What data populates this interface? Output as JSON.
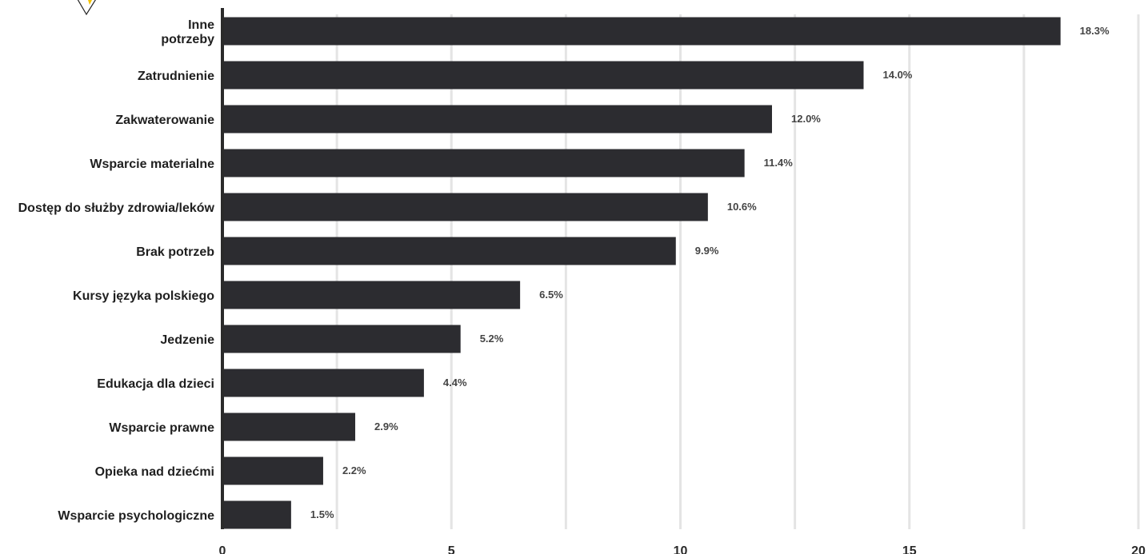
{
  "chart_data": {
    "type": "bar",
    "orientation": "horizontal",
    "categories": [
      "Inne potrzeby",
      "Zatrudnienie",
      "Zakwaterowanie",
      "Wsparcie materialne",
      "Dostęp do służby zdrowia/leków",
      "Brak potrzeb",
      "Kursy języka polskiego",
      "Jedzenie",
      "Edukacja dla dzieci",
      "Wsparcie prawne",
      "Opieka nad dziećmi",
      "Wsparcie psychologiczne"
    ],
    "category_lines": [
      [
        "Inne",
        "potrzeby"
      ],
      [
        "Zatrudnienie"
      ],
      [
        "Zakwaterowanie"
      ],
      [
        "Wsparcie materialne"
      ],
      [
        "Dostęp do służby zdrowia/leków"
      ],
      [
        "Brak potrzeb"
      ],
      [
        "Kursy języka polskiego"
      ],
      [
        "Jedzenie"
      ],
      [
        "Edukacja dla dzieci"
      ],
      [
        "Wsparcie prawne"
      ],
      [
        "Opieka nad dziećmi"
      ],
      [
        "Wsparcie psychologiczne"
      ]
    ],
    "values": [
      18.3,
      14.0,
      12.0,
      11.4,
      10.6,
      9.9,
      6.5,
      5.2,
      4.4,
      2.9,
      2.2,
      1.5
    ],
    "value_labels": [
      "18.3%",
      "14.0%",
      "12.0%",
      "11.4%",
      "10.6%",
      "9.9%",
      "6.5%",
      "5.2%",
      "4.4%",
      "2.9%",
      "2.2%",
      "1.5%"
    ],
    "xlim": [
      0,
      20
    ],
    "xticks": [
      0,
      5,
      10,
      15,
      20
    ],
    "xtick_labels": [
      "0",
      "5",
      "10",
      "15",
      "20"
    ],
    "grid": true,
    "title": "",
    "xlabel": "",
    "ylabel": ""
  },
  "colors": {
    "bar_fill": "#2c2c30",
    "bar_photo_dark": "#1c1d24",
    "bar_photo_navy": "#1b2743",
    "bar_photo_sky": "#8fb3d6",
    "bar_photo_wall": "#6e4a3f",
    "bar_photo_red": "#b3202a",
    "bar_photo_grey": "#8d8583",
    "gridline": "#e4e4e4",
    "axis_line": "#2b2b2b",
    "logo_stroke": "#222222",
    "logo_yellow": "#f5c400"
  },
  "logo": {
    "icon": "triangle-logo-icon"
  }
}
